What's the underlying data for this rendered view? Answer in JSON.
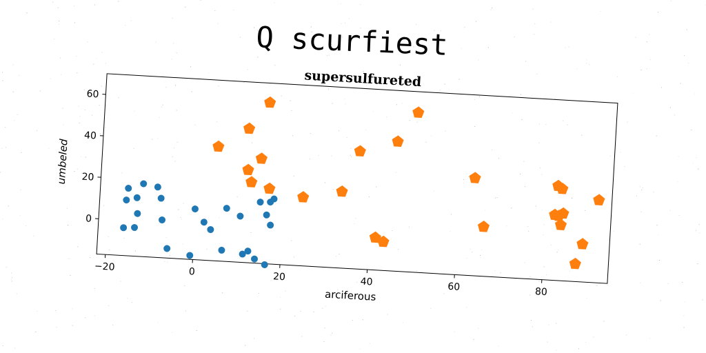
{
  "banner": {
    "title": "Q scurfiest"
  },
  "chart_data": {
    "type": "scatter",
    "title": "supersulfureted",
    "xlabel": "arciferous",
    "ylabel": "umbeled",
    "xlim": [
      -22,
      95
    ],
    "ylim": [
      -17,
      70
    ],
    "xticks": [
      -20,
      0,
      20,
      40,
      60,
      80
    ],
    "yticks": [
      0,
      20,
      40,
      60
    ],
    "grid": false,
    "legend": "none",
    "series": [
      {
        "marker": "circle",
        "color": "#1f77b4",
        "points": [
          [
            -15.6,
            15.5
          ],
          [
            -15.9,
            9.8
          ],
          [
            -13.5,
            11.2
          ],
          [
            -12.2,
            18.1
          ],
          [
            -8.9,
            16.9
          ],
          [
            -8.0,
            11.6
          ],
          [
            -13.2,
            3.6
          ],
          [
            -7.5,
            1.2
          ],
          [
            -16.2,
            -3.6
          ],
          [
            -13.7,
            -3.2
          ],
          [
            -6.0,
            -12.4
          ],
          [
            -0.7,
            -15.1
          ],
          [
            -0.1,
            7.4
          ],
          [
            2.1,
            1.3
          ],
          [
            3.7,
            -2.1
          ],
          [
            7.1,
            8.6
          ],
          [
            10.3,
            5.2
          ],
          [
            6.5,
            -11.7
          ],
          [
            11.3,
            -13.0
          ],
          [
            12.5,
            -11.4
          ],
          [
            14.1,
            -15.0
          ],
          [
            14.7,
            12.5
          ],
          [
            17.0,
            12.8
          ],
          [
            17.8,
            14.4
          ],
          [
            16.3,
            6.5
          ],
          [
            17.3,
            1.7
          ],
          [
            16.5,
            -17.5
          ]
        ]
      },
      {
        "marker": "pentagon",
        "color": "#ff7f0e",
        "points": [
          [
            15.6,
            60.6
          ],
          [
            11.2,
            47.5
          ],
          [
            4.4,
            38.0
          ],
          [
            14.4,
            33.4
          ],
          [
            11.5,
            27.6
          ],
          [
            12.4,
            21.8
          ],
          [
            16.6,
            19.2
          ],
          [
            24.4,
            16.0
          ],
          [
            33.2,
            19.8
          ],
          [
            36.8,
            39.7
          ],
          [
            45.3,
            45.4
          ],
          [
            49.6,
            59.9
          ],
          [
            41.4,
            -1.4
          ],
          [
            43.3,
            -3.2
          ],
          [
            63.4,
            30.0
          ],
          [
            66.0,
            6.8
          ],
          [
            82.5,
            28.5
          ],
          [
            83.5,
            27.2
          ],
          [
            82.1,
            14.5
          ],
          [
            83.0,
            14.1
          ],
          [
            84.0,
            15.4
          ],
          [
            83.6,
            9.8
          ],
          [
            92.0,
            22.8
          ],
          [
            88.8,
            1.2
          ],
          [
            87.4,
            -8.5
          ]
        ]
      }
    ]
  }
}
